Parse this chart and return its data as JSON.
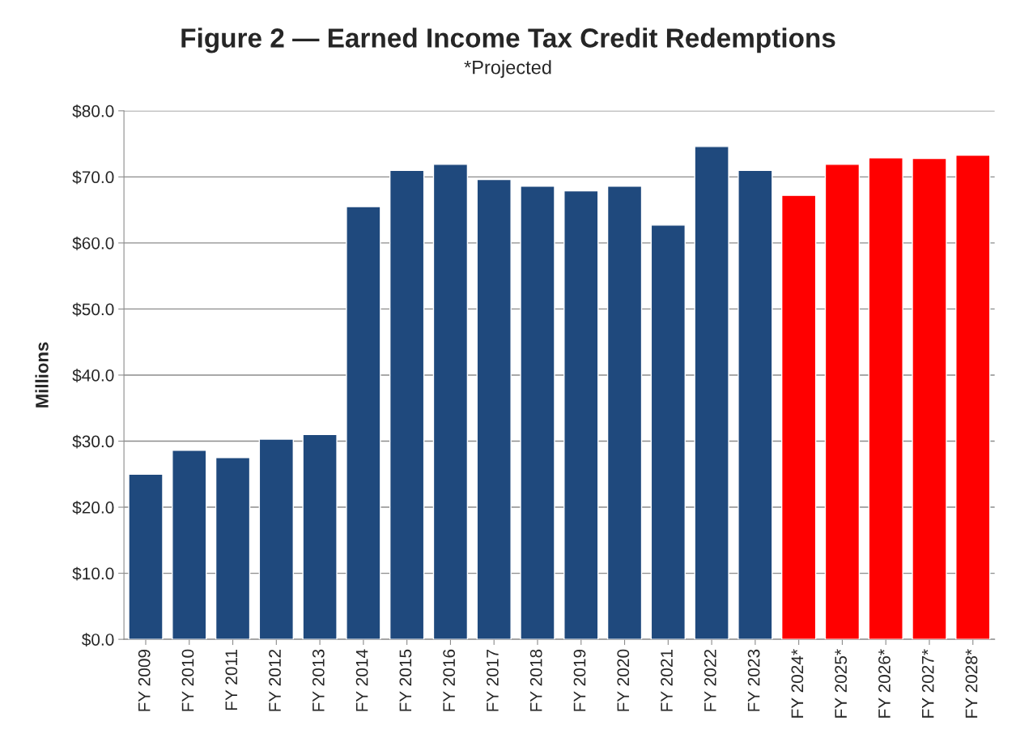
{
  "chart_data": {
    "type": "bar",
    "title": "Figure 2 — Earned Income Tax Credit Redemptions",
    "subtitle": "*Projected",
    "ylabel": "Millions",
    "categories": [
      "FY 2009",
      "FY 2010",
      "FY 2011",
      "FY 2012",
      "FY 2013",
      "FY 2014",
      "FY 2015",
      "FY 2016",
      "FY 2017",
      "FY 2018",
      "FY 2019",
      "FY 2020",
      "FY 2021",
      "FY 2022",
      "FY 2023",
      "FY 2024*",
      "FY 2025*",
      "FY 2026*",
      "FY 2027*",
      "FY 2028*"
    ],
    "values": [
      25.0,
      28.6,
      27.5,
      30.3,
      31.0,
      65.5,
      71.0,
      71.9,
      69.6,
      68.6,
      67.9,
      68.6,
      62.7,
      74.6,
      71.0,
      67.2,
      71.9,
      72.9,
      72.8,
      73.3
    ],
    "colors": [
      "#1f497d",
      "#1f497d",
      "#1f497d",
      "#1f497d",
      "#1f497d",
      "#1f497d",
      "#1f497d",
      "#1f497d",
      "#1f497d",
      "#1f497d",
      "#1f497d",
      "#1f497d",
      "#1f497d",
      "#1f497d",
      "#1f497d",
      "#ff0000",
      "#ff0000",
      "#ff0000",
      "#ff0000",
      "#ff0000"
    ],
    "ylim": [
      0,
      80
    ],
    "yticks": [
      {
        "value": 0,
        "label": "$0.0"
      },
      {
        "value": 10,
        "label": "$10.0"
      },
      {
        "value": 20,
        "label": "$20.0"
      },
      {
        "value": 30,
        "label": "$30.0"
      },
      {
        "value": 40,
        "label": "$40.0"
      },
      {
        "value": 50,
        "label": "$50.0"
      },
      {
        "value": 60,
        "label": "$60.0"
      },
      {
        "value": 70,
        "label": "$70.0"
      },
      {
        "value": 80,
        "label": "$80.0"
      }
    ],
    "grid": "y",
    "legend": false
  }
}
